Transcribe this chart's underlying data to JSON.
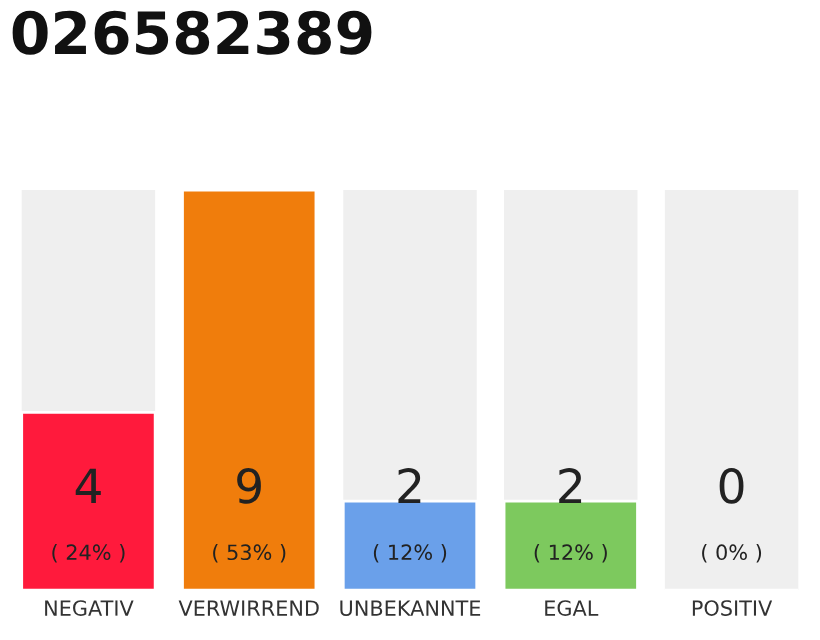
{
  "chart_data": {
    "type": "bar",
    "title": "026582389",
    "categories": [
      "NEGATIV",
      "VERWIRREND",
      "UNBEKANNTE",
      "EGAL",
      "POSITIV"
    ],
    "values": [
      4,
      9,
      2,
      2,
      0
    ],
    "colors": [
      "#ff1a3c",
      "#f07d0c",
      "#6aa0ea",
      "#7dc95e",
      null
    ],
    "value_labels": [
      "4\n( 24% )",
      "9\n( 53% )",
      "2\n( 12% )",
      "2\n( 12% )",
      "0\n( 0% )"
    ],
    "tick_labels": "x",
    "grid": false,
    "legend": false
  }
}
